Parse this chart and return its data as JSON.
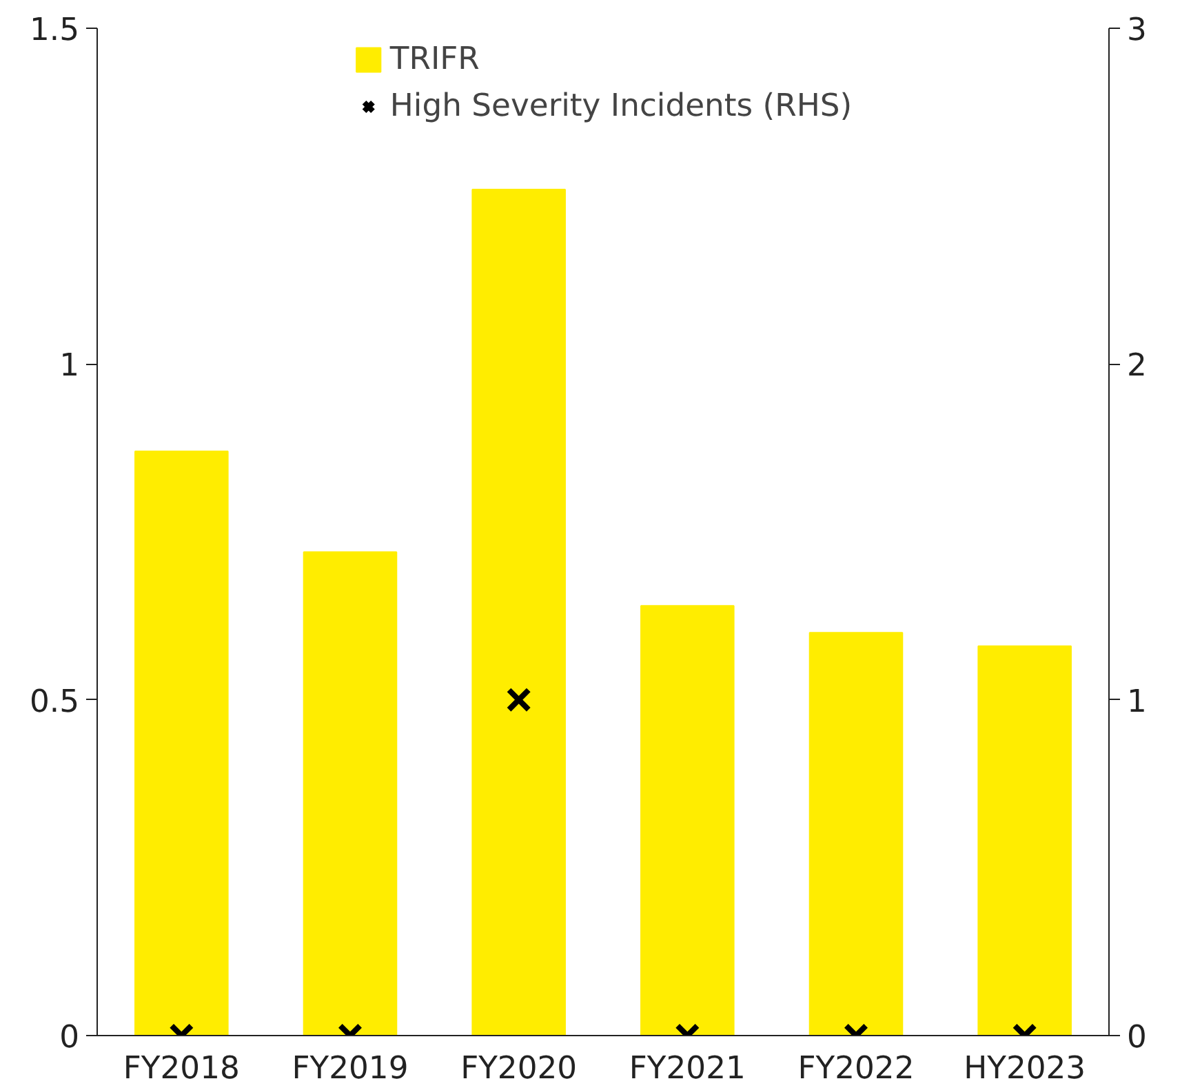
{
  "chart_data": {
    "type": "bar",
    "categories": [
      "FY2018",
      "FY2019",
      "FY2020",
      "FY2021",
      "FY2022",
      "HY2023"
    ],
    "series": [
      {
        "name": "TRIFR",
        "color": "#ffed00",
        "values": [
          0.87,
          0.72,
          1.26,
          0.64,
          0.6,
          0.58
        ]
      },
      {
        "name": "High Severity Incidents (RHS)",
        "type": "scatter",
        "axis": "y2",
        "marker": "cross",
        "color": "#000000",
        "values": [
          0,
          0,
          1,
          0,
          0,
          0
        ]
      }
    ],
    "ylim": [
      0,
      1.5
    ],
    "yticks": [
      0,
      0.5,
      1,
      1.5
    ],
    "y2lim": [
      0,
      3
    ],
    "y2ticks": [
      0,
      1,
      2,
      3
    ],
    "grid": false,
    "legend": "top"
  }
}
